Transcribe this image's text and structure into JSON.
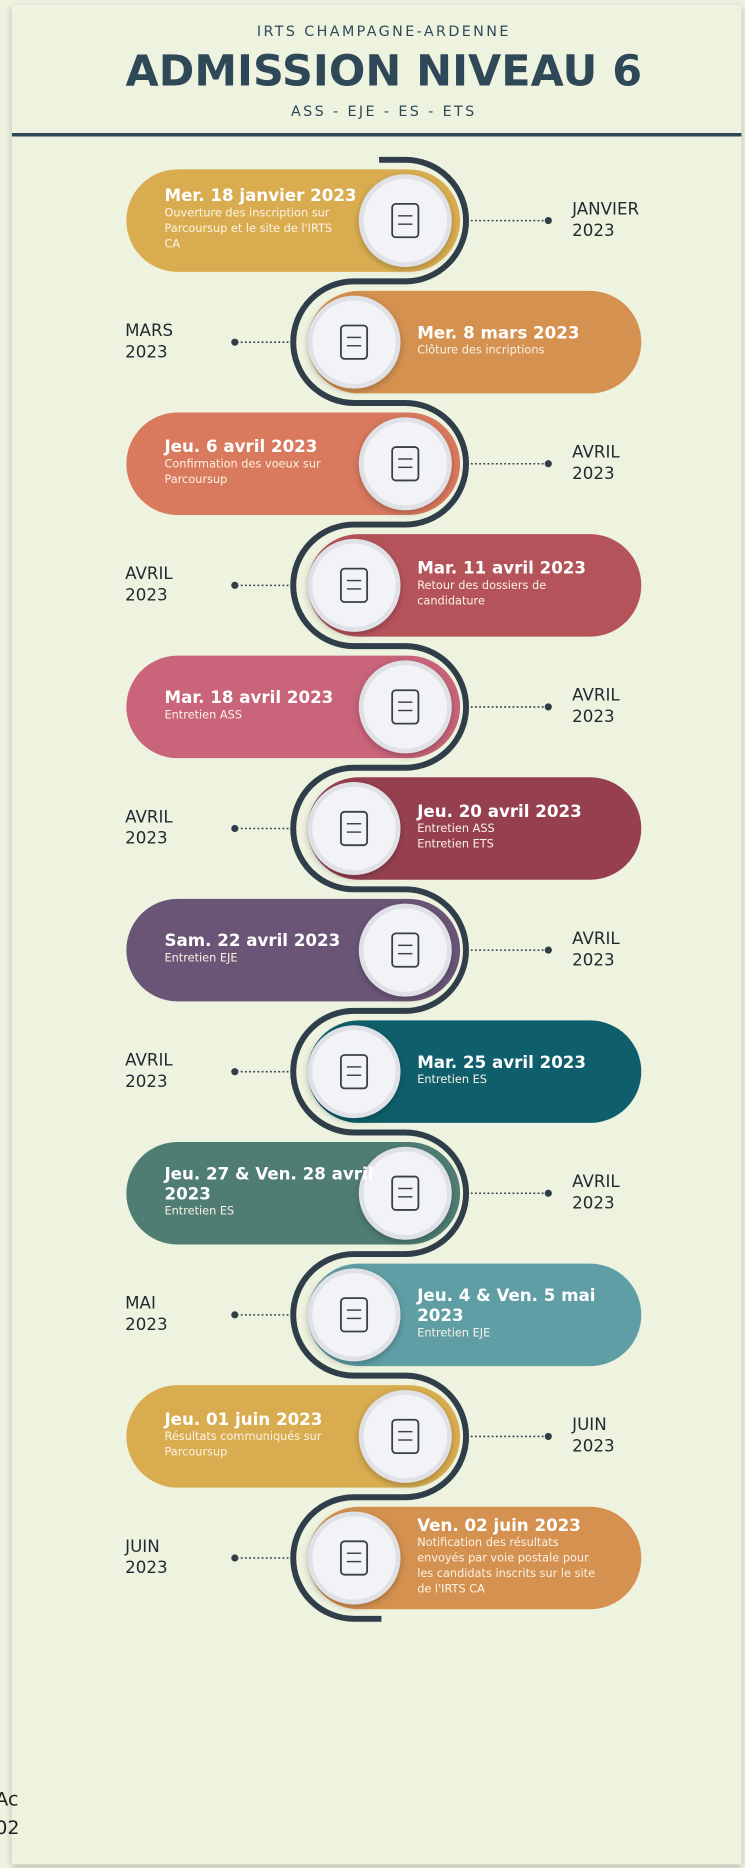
{
  "header": {
    "organization": "IRTS CHAMPAGNE-ARDENNE",
    "title": "ADMISSION NIVEAU 6",
    "subtitle": "ASS - EJE - ES - ETS"
  },
  "events": [
    {
      "title": [
        "Mer. 18 janvier 2023"
      ],
      "description": [
        "Ouverture des inscription sur",
        "Parcoursup et le site de l'IRTS",
        "CA"
      ],
      "month": "JANVIER",
      "year": "2023",
      "color": "#d9ad4f"
    },
    {
      "title": [
        "Mer. 8 mars 2023"
      ],
      "description": [
        "Clôture des incriptions"
      ],
      "month": "MARS",
      "year": "2023",
      "color": "#d4914f"
    },
    {
      "title": [
        "Jeu. 6 avril 2023"
      ],
      "description": [
        "Confirmation des voeux sur",
        "Parcoursup"
      ],
      "month": "AVRIL",
      "year": "2023",
      "color": "#d9795e"
    },
    {
      "title": [
        "Mar. 11 avril 2023"
      ],
      "description": [
        "Retour des dossiers de",
        "candidature"
      ],
      "month": "AVRIL",
      "year": "2023",
      "color": "#b5535a"
    },
    {
      "title": [
        "Mar. 18 avril 2023"
      ],
      "description": [
        "Entretien ASS"
      ],
      "month": "AVRIL",
      "year": "2023",
      "color": "#c9647a"
    },
    {
      "title": [
        "Jeu. 20 avril 2023"
      ],
      "description": [
        "Entretien ASS",
        "Entretien ETS"
      ],
      "month": "AVRIL",
      "year": "2023",
      "color": "#96404f"
    },
    {
      "title": [
        "Sam. 22 avril 2023"
      ],
      "description": [
        "Entretien EJE"
      ],
      "month": "AVRIL",
      "year": "2023",
      "color": "#6a5577"
    },
    {
      "title": [
        "Mar. 25 avril 2023"
      ],
      "description": [
        "Entretien ES"
      ],
      "month": "AVRIL",
      "year": "2023",
      "color": "#0e5f6b"
    },
    {
      "title": [
        "Jeu. 27 & Ven. 28 avril",
        "2023"
      ],
      "description": [
        "Entretien ES"
      ],
      "month": "AVRIL",
      "year": "2023",
      "color": "#4f7d73"
    },
    {
      "title": [
        "Jeu. 4 & Ven. 5 mai",
        "2023"
      ],
      "description": [
        "Entretien EJE"
      ],
      "month": "MAI",
      "year": "2023",
      "color": "#5f9ea5"
    },
    {
      "title": [
        "Jeu. 01 juin 2023"
      ],
      "description": [
        "Résultats communiqués sur",
        "Parcoursup"
      ],
      "month": "JUIN",
      "year": "2023",
      "color": "#d9ad4f"
    },
    {
      "title": [
        "Ven. 02 juin 2023"
      ],
      "description": [
        "Notification des résultats",
        " envoyés par voie postale pour",
        "les candidats inscrits sur le site",
        "de l'IRTS CA"
      ],
      "month": "JUIN",
      "year": "2023",
      "color": "#d4914f"
    }
  ],
  "footer_fragment": [
    "Ac",
    "02"
  ]
}
